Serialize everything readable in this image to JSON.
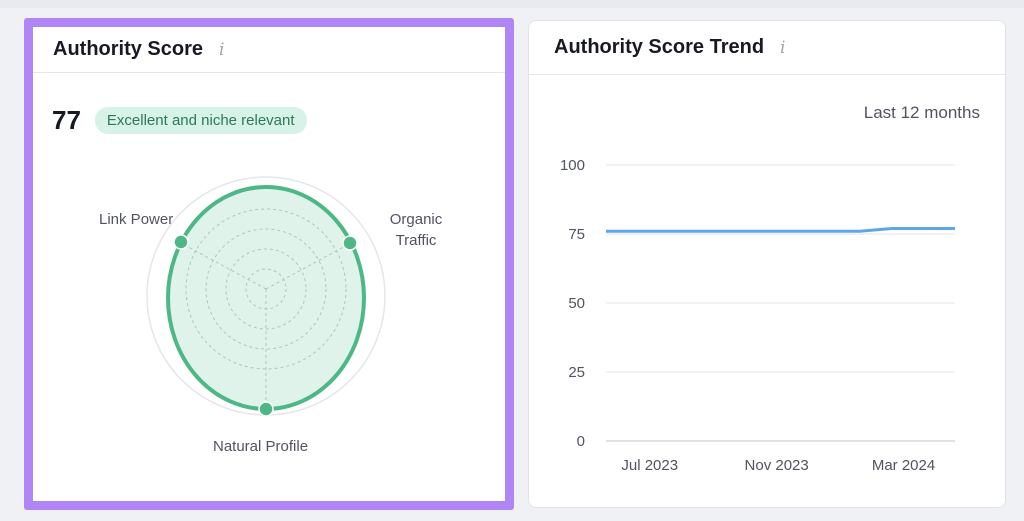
{
  "authority_card": {
    "title": "Authority Score",
    "info_icon": "info-icon",
    "score": "77",
    "badge": "Excellent and niche relevant",
    "axes": {
      "link_power": "Link Power",
      "organic_traffic": "Organic Traffic",
      "natural_profile": "Natural Profile"
    },
    "colors": {
      "accent": "#b085f5",
      "radar": "#4db885",
      "radar_fill": "#dff3ea"
    }
  },
  "trend_card": {
    "title": "Authority Score Trend",
    "info_icon": "info-icon",
    "period": "Last 12 months"
  },
  "chart_data": {
    "type": "line",
    "title": "Authority Score Trend",
    "ylim": [
      0,
      100
    ],
    "y_ticks": [
      "100",
      "75",
      "50",
      "25",
      "0"
    ],
    "x_ticks": [
      "Jul 2023",
      "Nov 2023",
      "Mar 2024"
    ],
    "grid": true,
    "series": [
      {
        "color": "#5ca8e6",
        "points": [
          {
            "x": "2023-06",
            "y": 76
          },
          {
            "x": "2023-07",
            "y": 76
          },
          {
            "x": "2023-08",
            "y": 76
          },
          {
            "x": "2023-09",
            "y": 76
          },
          {
            "x": "2023-10",
            "y": 76
          },
          {
            "x": "2023-11",
            "y": 76
          },
          {
            "x": "2023-12",
            "y": 76
          },
          {
            "x": "2024-01",
            "y": 76
          },
          {
            "x": "2024-02",
            "y": 76
          },
          {
            "x": "2024-03",
            "y": 77
          },
          {
            "x": "2024-04",
            "y": 77
          },
          {
            "x": "2024-05",
            "y": 77
          }
        ],
        "dashed_from": "2024-05"
      }
    ]
  }
}
